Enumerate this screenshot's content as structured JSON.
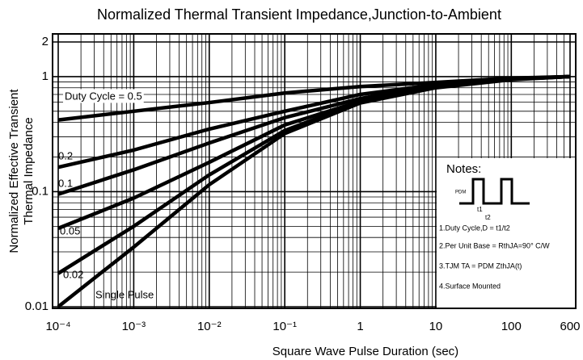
{
  "chart_data": {
    "type": "line",
    "title": "Normalized Thermal Transient Impedance,Junction-to-Ambient",
    "x_label": "Square Wave  Pulse Duration (sec)",
    "y_label": [
      "Normalized Effective Transient",
      "Thermal Impedance"
    ],
    "x_scale": "log",
    "y_scale": "log",
    "grid": true,
    "minor_grid": true,
    "xlim": [
      0.0001,
      600
    ],
    "xticks": [
      {
        "value": 0.0001,
        "label": "10⁻⁴"
      },
      {
        "value": 0.001,
        "label": "10⁻³"
      },
      {
        "value": 0.01,
        "label": "10⁻²"
      },
      {
        "value": 0.1,
        "label": "10⁻¹"
      },
      1,
      10,
      100,
      600
    ],
    "ylim": [
      0.01,
      2
    ],
    "yticks": [
      2,
      1,
      0.1,
      0.01
    ],
    "x": [
      0.0001,
      0.001,
      0.01,
      0.1,
      1,
      10,
      100,
      600
    ],
    "series": [
      {
        "name": "Duty Cycle = 0.5",
        "color": "#000000",
        "values": [
          0.42,
          0.5,
          0.595,
          0.72,
          0.82,
          0.89,
          0.97,
          1
        ]
      },
      {
        "name": "0.2",
        "color": "#000000",
        "values": [
          0.163,
          0.23,
          0.35,
          0.5,
          0.7,
          0.85,
          0.95,
          1
        ]
      },
      {
        "name": "0.1",
        "color": "#000000",
        "values": [
          0.095,
          0.155,
          0.265,
          0.44,
          0.645,
          0.84,
          0.96,
          1
        ]
      },
      {
        "name": "0.05",
        "color": "#000000",
        "values": [
          0.048,
          0.088,
          0.18,
          0.38,
          0.61,
          0.82,
          0.95,
          1
        ]
      },
      {
        "name": "0.02",
        "color": "#000000",
        "values": [
          0.0195,
          0.05,
          0.14,
          0.34,
          0.6,
          0.81,
          0.95,
          1
        ]
      },
      {
        "name": "Single Pulse",
        "color": "#000000",
        "values": [
          0.01,
          0.033,
          0.115,
          0.32,
          0.59,
          0.8,
          0.94,
          1
        ]
      }
    ],
    "notes": {
      "title": "Notes:",
      "pulse_labels": [
        "PDM",
        "t1",
        "t2"
      ],
      "items": [
        "1.Duty Cycle,D = t1/t2",
        "2.Per Unit Base = RthJA=90°  C/W",
        "3.TJM  TA  = PDM  ZthJA(t)",
        "4.Surface Mounted"
      ]
    }
  }
}
